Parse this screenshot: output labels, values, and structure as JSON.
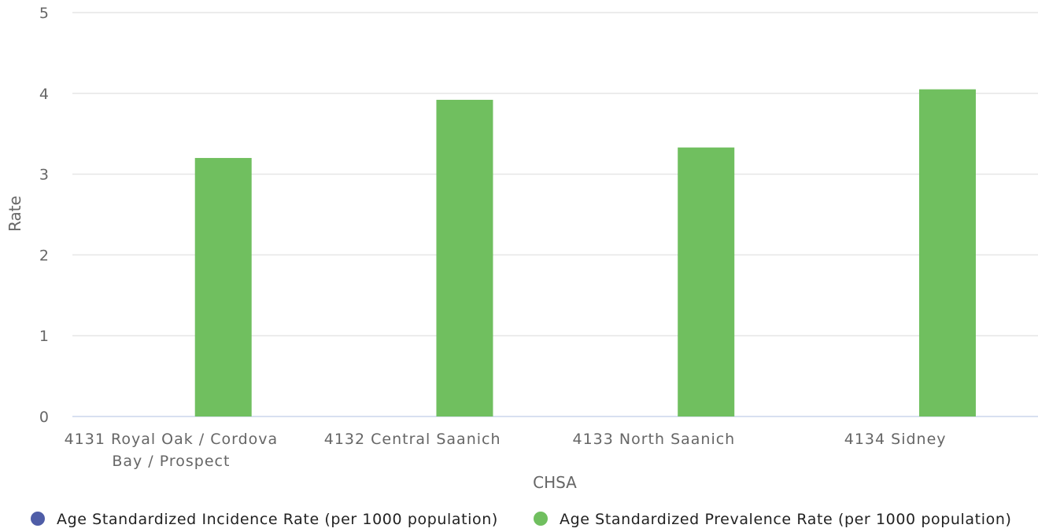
{
  "chart_data": {
    "type": "bar",
    "categories": [
      [
        "4131 Royal Oak / Cordova",
        "Bay / Prospect"
      ],
      [
        "4132 Central Saanich"
      ],
      [
        "4133 North Saanich"
      ],
      [
        "4134 Sidney"
      ]
    ],
    "series": [
      {
        "name": "Age Standardized Incidence Rate (per 1000 population)",
        "color": "#4f5da7",
        "values": [
          0,
          0,
          0,
          0
        ]
      },
      {
        "name": "Age Standardized Prevalence Rate (per 1000 population)",
        "color": "#70bf5f",
        "values": [
          3.2,
          3.92,
          3.33,
          4.05
        ]
      }
    ],
    "xlabel": "CHSA",
    "ylabel": "Rate",
    "ylim": [
      0,
      5
    ],
    "yticks": [
      0,
      1,
      2,
      3,
      4,
      5
    ],
    "grid": true,
    "legend_position": "bottom-center"
  }
}
